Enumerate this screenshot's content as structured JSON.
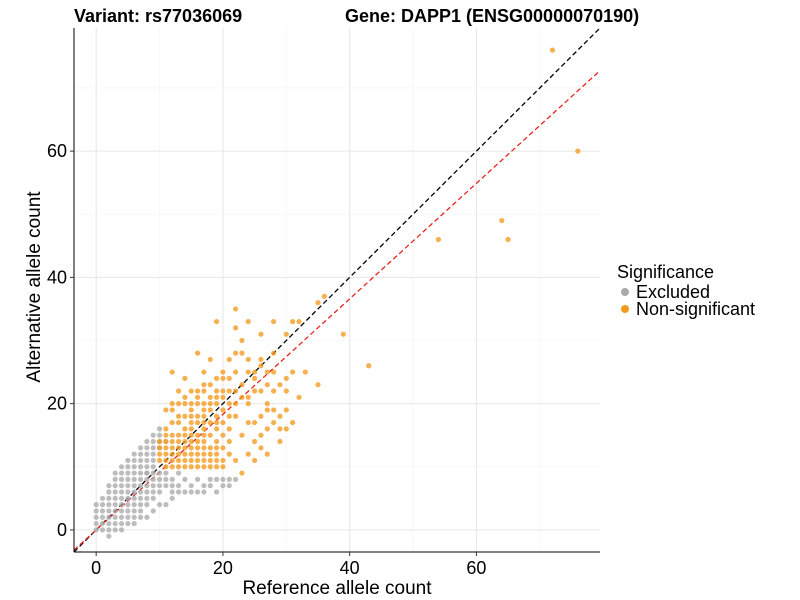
{
  "chart_data": {
    "type": "scatter",
    "title_left": "Variant: rs77036069",
    "title_right": "Gene: DAPP1 (ENSG00000070190)",
    "xlabel": "Reference allele count",
    "ylabel": "Alternative allele count",
    "xlim": [
      -3.5,
      79.5
    ],
    "ylim": [
      -3.5,
      79.5
    ],
    "x_ticks": [
      0,
      20,
      40,
      60
    ],
    "y_ticks": [
      0,
      20,
      40,
      60
    ],
    "grid": true,
    "legend": {
      "title": "Significance",
      "position": "right",
      "entries": [
        {
          "label": "Excluded",
          "color": "#aaaaaa"
        },
        {
          "label": "Non-significant",
          "color": "#f39a1e"
        }
      ]
    },
    "reference_lines": [
      {
        "name": "identity",
        "slope": 1,
        "intercept": 0,
        "color": "#000000",
        "style": "dashed"
      },
      {
        "name": "fit",
        "slope": 0.915,
        "intercept": 0,
        "color": "#e8231f",
        "style": "dashed"
      }
    ],
    "series": [
      {
        "name": "Excluded",
        "color": "#aaaaaa",
        "points": [
          [
            0,
            0
          ],
          [
            1,
            0
          ],
          [
            2,
            0
          ],
          [
            3,
            0
          ],
          [
            0,
            1
          ],
          [
            1,
            1
          ],
          [
            2,
            1
          ],
          [
            3,
            1
          ],
          [
            4,
            1
          ],
          [
            5,
            1
          ],
          [
            0,
            2
          ],
          [
            1,
            2
          ],
          [
            2,
            2
          ],
          [
            3,
            2
          ],
          [
            4,
            2
          ],
          [
            5,
            2
          ],
          [
            6,
            2
          ],
          [
            0,
            3
          ],
          [
            1,
            3
          ],
          [
            2,
            3
          ],
          [
            3,
            3
          ],
          [
            4,
            3
          ],
          [
            5,
            3
          ],
          [
            6,
            3
          ],
          [
            7,
            3
          ],
          [
            0,
            4
          ],
          [
            1,
            4
          ],
          [
            2,
            4
          ],
          [
            3,
            4
          ],
          [
            4,
            4
          ],
          [
            5,
            4
          ],
          [
            6,
            4
          ],
          [
            7,
            4
          ],
          [
            8,
            4
          ],
          [
            1,
            5
          ],
          [
            2,
            5
          ],
          [
            3,
            5
          ],
          [
            4,
            5
          ],
          [
            5,
            5
          ],
          [
            6,
            5
          ],
          [
            7,
            5
          ],
          [
            8,
            5
          ],
          [
            9,
            5
          ],
          [
            2,
            6
          ],
          [
            3,
            6
          ],
          [
            4,
            6
          ],
          [
            5,
            6
          ],
          [
            6,
            6
          ],
          [
            7,
            6
          ],
          [
            8,
            6
          ],
          [
            9,
            6
          ],
          [
            10,
            6
          ],
          [
            2,
            7
          ],
          [
            3,
            7
          ],
          [
            4,
            7
          ],
          [
            5,
            7
          ],
          [
            6,
            7
          ],
          [
            7,
            7
          ],
          [
            8,
            7
          ],
          [
            9,
            7
          ],
          [
            10,
            7
          ],
          [
            11,
            7
          ],
          [
            3,
            8
          ],
          [
            4,
            8
          ],
          [
            5,
            8
          ],
          [
            6,
            8
          ],
          [
            7,
            8
          ],
          [
            8,
            8
          ],
          [
            9,
            8
          ],
          [
            10,
            8
          ],
          [
            11,
            8
          ],
          [
            12,
            8
          ],
          [
            3,
            9
          ],
          [
            4,
            9
          ],
          [
            5,
            9
          ],
          [
            6,
            9
          ],
          [
            7,
            9
          ],
          [
            8,
            9
          ],
          [
            9,
            9
          ],
          [
            10,
            9
          ],
          [
            11,
            9
          ],
          [
            4,
            10
          ],
          [
            5,
            10
          ],
          [
            6,
            10
          ],
          [
            7,
            10
          ],
          [
            8,
            10
          ],
          [
            9,
            10
          ],
          [
            5,
            11
          ],
          [
            6,
            11
          ],
          [
            7,
            11
          ],
          [
            8,
            11
          ],
          [
            9,
            11
          ],
          [
            6,
            12
          ],
          [
            7,
            12
          ],
          [
            8,
            12
          ],
          [
            9,
            12
          ],
          [
            7,
            13
          ],
          [
            8,
            13
          ],
          [
            9,
            13
          ],
          [
            10,
            13
          ],
          [
            8,
            14
          ],
          [
            9,
            14
          ],
          [
            10,
            14
          ],
          [
            11,
            14
          ],
          [
            9,
            15
          ],
          [
            10,
            15
          ],
          [
            10,
            16
          ],
          [
            8,
            9
          ],
          [
            13,
            9
          ],
          [
            14,
            8
          ],
          [
            15,
            7
          ],
          [
            16,
            8
          ],
          [
            17,
            7
          ],
          [
            18,
            7
          ],
          [
            19,
            6
          ],
          [
            20,
            8
          ],
          [
            21,
            7
          ],
          [
            14,
            6
          ],
          [
            13,
            7
          ],
          [
            16,
            6
          ],
          [
            12,
            5
          ],
          [
            10,
            4
          ],
          [
            11,
            4
          ],
          [
            9,
            3
          ],
          [
            8,
            2
          ],
          [
            7,
            2
          ],
          [
            6,
            1
          ],
          [
            4,
            0
          ],
          [
            2,
            -1
          ],
          [
            12,
            6
          ],
          [
            13,
            6
          ],
          [
            15,
            6
          ],
          [
            17,
            6
          ],
          [
            18,
            8
          ],
          [
            19,
            8
          ],
          [
            20,
            7
          ],
          [
            21,
            8
          ],
          [
            22,
            8
          ],
          [
            12,
            7
          ]
        ]
      },
      {
        "name": "Non-significant",
        "color": "#f39a1e",
        "points": [
          [
            72,
            76
          ],
          [
            76,
            60
          ],
          [
            64,
            49
          ],
          [
            65,
            46
          ],
          [
            54,
            46
          ],
          [
            43,
            26
          ],
          [
            39,
            31
          ],
          [
            36,
            37
          ],
          [
            35,
            36
          ],
          [
            35,
            23
          ],
          [
            32,
            33
          ],
          [
            31,
            33
          ],
          [
            30,
            31
          ],
          [
            33,
            25
          ],
          [
            31,
            25
          ],
          [
            32,
            21
          ],
          [
            30,
            22
          ],
          [
            29,
            23
          ],
          [
            28,
            28
          ],
          [
            28,
            33
          ],
          [
            27,
            25
          ],
          [
            26,
            31
          ],
          [
            26,
            27
          ],
          [
            27,
            23
          ],
          [
            26,
            22
          ],
          [
            25,
            25
          ],
          [
            25,
            24
          ],
          [
            25,
            22
          ],
          [
            24,
            25
          ],
          [
            24,
            21
          ],
          [
            24,
            20
          ],
          [
            24,
            33
          ],
          [
            23,
            30
          ],
          [
            23,
            28
          ],
          [
            23,
            23
          ],
          [
            23,
            21
          ],
          [
            22,
            32
          ],
          [
            22,
            28
          ],
          [
            22,
            25
          ],
          [
            22,
            22
          ],
          [
            22,
            20
          ],
          [
            22,
            18
          ],
          [
            21,
            27
          ],
          [
            21,
            24
          ],
          [
            21,
            22
          ],
          [
            21,
            20
          ],
          [
            21,
            18
          ],
          [
            21,
            16
          ],
          [
            21,
            14
          ],
          [
            21,
            12
          ],
          [
            20,
            25
          ],
          [
            20,
            24
          ],
          [
            20,
            22
          ],
          [
            20,
            21
          ],
          [
            20,
            19
          ],
          [
            20,
            17
          ],
          [
            20,
            15
          ],
          [
            20,
            13
          ],
          [
            20,
            11
          ],
          [
            20,
            10
          ],
          [
            19,
            33
          ],
          [
            19,
            24
          ],
          [
            19,
            22
          ],
          [
            19,
            21
          ],
          [
            19,
            20
          ],
          [
            19,
            18
          ],
          [
            19,
            17
          ],
          [
            19,
            16
          ],
          [
            19,
            14
          ],
          [
            19,
            13
          ],
          [
            19,
            12
          ],
          [
            19,
            11
          ],
          [
            19,
            10
          ],
          [
            18,
            27
          ],
          [
            18,
            23
          ],
          [
            18,
            21
          ],
          [
            18,
            20
          ],
          [
            18,
            19
          ],
          [
            18,
            17
          ],
          [
            18,
            15
          ],
          [
            18,
            13
          ],
          [
            18,
            12
          ],
          [
            18,
            11
          ],
          [
            18,
            10
          ],
          [
            17,
            25
          ],
          [
            17,
            23
          ],
          [
            17,
            22
          ],
          [
            17,
            20
          ],
          [
            17,
            19
          ],
          [
            17,
            18
          ],
          [
            17,
            17
          ],
          [
            17,
            16
          ],
          [
            17,
            15
          ],
          [
            17,
            14
          ],
          [
            17,
            13
          ],
          [
            17,
            12
          ],
          [
            17,
            11
          ],
          [
            17,
            10
          ],
          [
            16,
            28
          ],
          [
            16,
            22
          ],
          [
            16,
            21
          ],
          [
            16,
            20
          ],
          [
            16,
            18
          ],
          [
            16,
            17
          ],
          [
            16,
            15
          ],
          [
            16,
            14
          ],
          [
            16,
            13
          ],
          [
            16,
            12
          ],
          [
            16,
            11
          ],
          [
            16,
            10
          ],
          [
            15,
            22
          ],
          [
            15,
            20
          ],
          [
            15,
            19
          ],
          [
            15,
            18
          ],
          [
            15,
            17
          ],
          [
            15,
            16
          ],
          [
            15,
            15
          ],
          [
            15,
            14
          ],
          [
            15,
            13
          ],
          [
            15,
            12
          ],
          [
            15,
            11
          ],
          [
            15,
            10
          ],
          [
            14,
            24
          ],
          [
            14,
            21
          ],
          [
            14,
            20
          ],
          [
            14,
            18
          ],
          [
            14,
            16
          ],
          [
            14,
            15
          ],
          [
            14,
            14
          ],
          [
            14,
            13
          ],
          [
            14,
            12
          ],
          [
            14,
            11
          ],
          [
            14,
            10
          ],
          [
            13,
            22
          ],
          [
            13,
            20
          ],
          [
            13,
            18
          ],
          [
            13,
            17
          ],
          [
            13,
            15
          ],
          [
            13,
            14
          ],
          [
            13,
            13
          ],
          [
            13,
            12
          ],
          [
            13,
            11
          ],
          [
            13,
            10
          ],
          [
            12,
            25
          ],
          [
            12,
            20
          ],
          [
            12,
            19
          ],
          [
            12,
            17
          ],
          [
            12,
            15
          ],
          [
            12,
            14
          ],
          [
            12,
            13
          ],
          [
            12,
            12
          ],
          [
            12,
            11
          ],
          [
            12,
            10
          ],
          [
            11,
            19
          ],
          [
            11,
            16
          ],
          [
            11,
            15
          ],
          [
            11,
            14
          ],
          [
            11,
            13
          ],
          [
            11,
            12
          ],
          [
            11,
            11
          ],
          [
            11,
            10
          ],
          [
            10,
            14
          ],
          [
            10,
            13
          ],
          [
            10,
            12
          ],
          [
            10,
            11
          ],
          [
            22,
            11
          ],
          [
            23,
            15
          ],
          [
            24,
            12
          ],
          [
            25,
            14
          ],
          [
            25,
            17
          ],
          [
            26,
            15
          ],
          [
            26,
            18
          ],
          [
            27,
            16
          ],
          [
            27,
            19
          ],
          [
            27,
            20
          ],
          [
            28,
            19
          ],
          [
            28,
            17
          ],
          [
            29,
            18
          ],
          [
            29,
            14
          ],
          [
            30,
            16
          ],
          [
            30,
            19
          ],
          [
            31,
            17
          ],
          [
            26,
            13
          ],
          [
            23,
            9
          ],
          [
            27,
            12
          ],
          [
            29,
            16
          ],
          [
            28,
            25
          ],
          [
            25,
            11
          ],
          [
            24,
            27
          ],
          [
            22,
            35
          ],
          [
            26,
            26
          ],
          [
            28,
            22
          ],
          [
            30,
            24
          ],
          [
            24,
            17
          ]
        ]
      }
    ]
  }
}
